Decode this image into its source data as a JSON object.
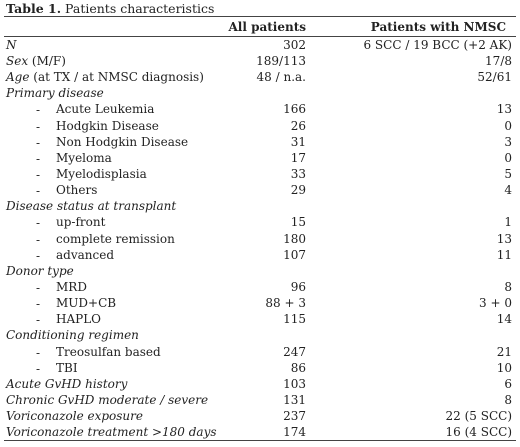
{
  "caption": {
    "label": "Table 1.",
    "title": " Patients characteristics"
  },
  "header": {
    "col1": "",
    "col2": "All patients",
    "col3": "Patients with NMSC"
  },
  "rows": [
    {
      "label": "N",
      "italic_part": "N",
      "rest": "",
      "all": "302",
      "nmsc": "6 SCC / 19 BCC (+2 AK)",
      "type": "main"
    },
    {
      "label": "Sex (M/F)",
      "italic_part": "Sex",
      "rest": " (M/F)",
      "all": "189/113",
      "nmsc": "17/8",
      "type": "main"
    },
    {
      "label": "Age (at TX / at NMSC diagnosis)",
      "italic_part": "Age",
      "rest": " (at TX / at NMSC diagnosis)",
      "all": "48 / n.a.",
      "nmsc": "52/61",
      "type": "main"
    },
    {
      "label": "Primary disease",
      "italic_part": "Primary disease",
      "rest": "",
      "all": "",
      "nmsc": "",
      "type": "main"
    },
    {
      "dash": "-",
      "label": "Acute Leukemia",
      "all": "166",
      "nmsc": "13",
      "type": "dash"
    },
    {
      "dash": "-",
      "label": "Hodgkin Disease",
      "all": "26",
      "nmsc": "0",
      "type": "dash"
    },
    {
      "dash": "-",
      "label": "Non Hodgkin Disease",
      "all": "31",
      "nmsc": "3",
      "type": "dash"
    },
    {
      "dash": "-",
      "label": "Myeloma",
      "all": "17",
      "nmsc": "0",
      "type": "dash"
    },
    {
      "dash": "-",
      "label": "Myelodisplasia",
      "all": "33",
      "nmsc": "5",
      "type": "dash"
    },
    {
      "dash": "-",
      "label": "Others",
      "all": "29",
      "nmsc": "4",
      "type": "dash"
    },
    {
      "label": "Disease status at transplant",
      "italic_part": "Disease status at transplant",
      "rest": "",
      "all": "",
      "nmsc": "",
      "type": "main"
    },
    {
      "dash": "-",
      "label": "up-front",
      "all": "15",
      "nmsc": "1",
      "type": "dash"
    },
    {
      "dash": "-",
      "label": "complete remission",
      "all": "180",
      "nmsc": "13",
      "type": "dash"
    },
    {
      "dash": "-",
      "label": "advanced",
      "all": "107",
      "nmsc": "11",
      "type": "dash"
    },
    {
      "label": "Donor type",
      "italic_part": "Donor type",
      "rest": "",
      "all": "",
      "nmsc": "",
      "type": "main"
    },
    {
      "dash": "-",
      "label": "MRD",
      "all": "96",
      "nmsc": "8",
      "type": "dash"
    },
    {
      "dash": "-",
      "label": "MUD+CB",
      "all": "88 + 3",
      "nmsc": "3 + 0",
      "type": "dash"
    },
    {
      "dash": "-",
      "label": "HAPLO",
      "all": "115",
      "nmsc": "14",
      "type": "dash"
    },
    {
      "label": "Conditioning regimen",
      "italic_part": "Conditioning regimen",
      "rest": "",
      "all": "",
      "nmsc": "",
      "type": "main"
    },
    {
      "dash": "-",
      "label": "Treosulfan based",
      "all": "247",
      "nmsc": "21",
      "type": "dash"
    },
    {
      "dash": "-",
      "label": "TBI",
      "all": "86",
      "nmsc": "10",
      "type": "dash"
    },
    {
      "label": "Acute GvHD history",
      "italic_part": "Acute GvHD history",
      "rest": "",
      "all": "103",
      "nmsc": "6",
      "type": "main"
    },
    {
      "label": "Chronic GvHD moderate / severe",
      "italic_part": "Chronic GvHD moderate / severe",
      "rest": "",
      "all": "131",
      "nmsc": "8",
      "type": "main"
    },
    {
      "label": "Voriconazole exposure",
      "italic_part": "Voriconazole exposure",
      "rest": "",
      "all": "237",
      "nmsc": "22 (5 SCC)",
      "type": "main"
    },
    {
      "label": "Voriconazole treatment >180 days",
      "italic_part": "Voriconazole treatment >180 days",
      "rest": "",
      "all": "174",
      "nmsc": "16 (4 SCC)",
      "type": "main"
    }
  ]
}
